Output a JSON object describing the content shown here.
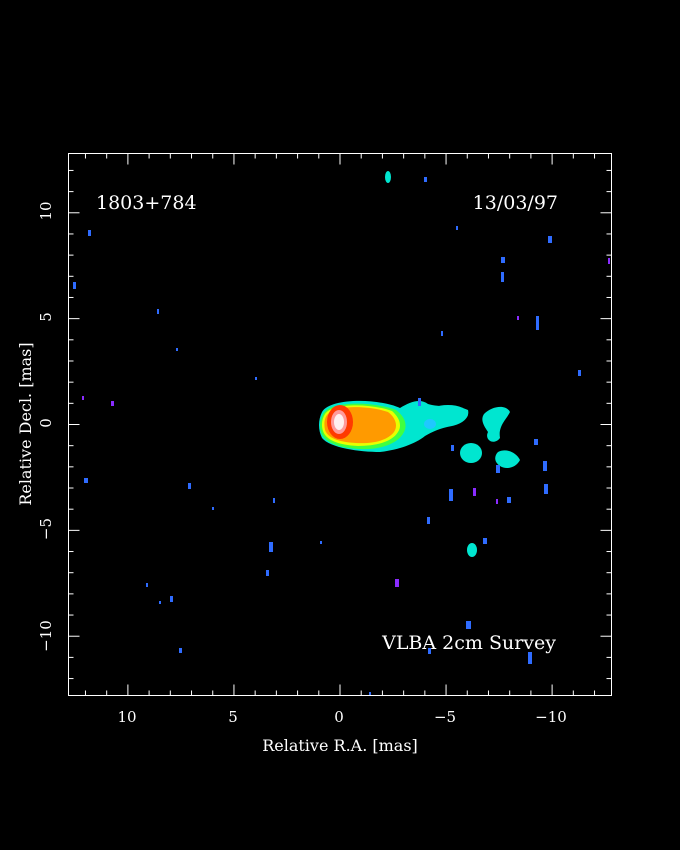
{
  "labels": {
    "source": "1803+784",
    "date": "13/03/97",
    "survey": "VLBA 2cm Survey",
    "xlabel": "Relative R.A. [mas]",
    "ylabel": "Relative Decl. [mas]"
  },
  "axes": {
    "x_range": [
      12.8,
      -12.8
    ],
    "y_range": [
      -12.8,
      12.8
    ],
    "x_ticks": [
      10,
      5,
      0,
      -5,
      -10
    ],
    "x_tick_labels": [
      "10",
      "5",
      "0",
      "−5",
      "−10"
    ],
    "y_ticks": [
      10,
      5,
      0,
      -5,
      -10
    ],
    "y_tick_labels": [
      "10",
      "5",
      "0",
      "−5",
      "−10"
    ]
  },
  "colors": {
    "background": "#000000",
    "frame": "#ffffff",
    "core": "#ffe8e8",
    "hot": "#ff3000",
    "warm": "#ff9c00",
    "yellow": "#f0ff00",
    "green": "#60ff00",
    "cyan": "#00ffd8",
    "blue": "#2060ff",
    "purple": "#8020ff"
  }
}
